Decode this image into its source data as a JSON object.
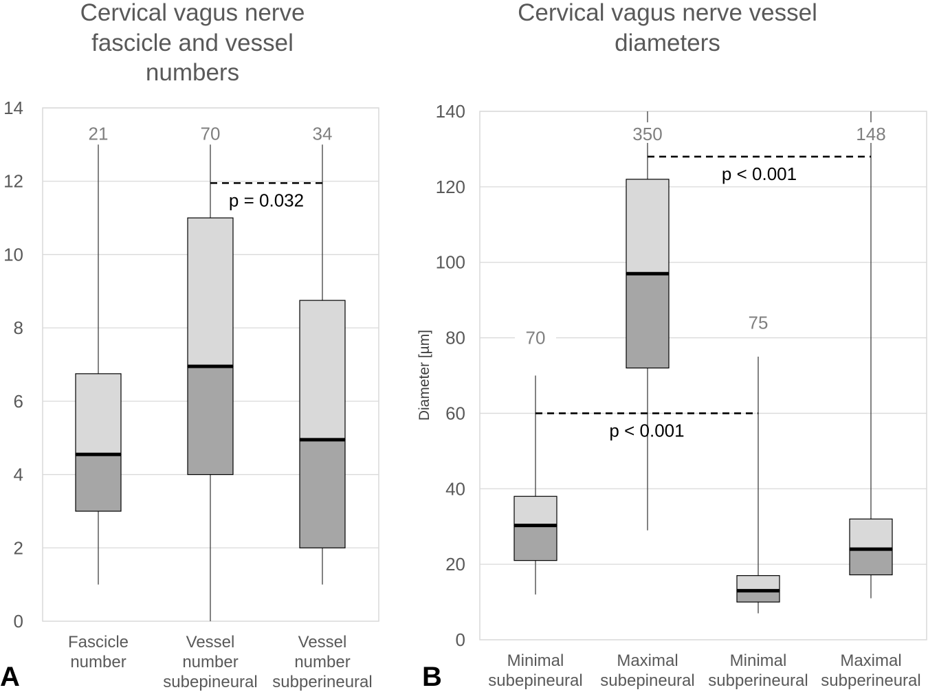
{
  "colors": {
    "upper_box": "#d9d9d9",
    "lower_box": "#a6a6a6",
    "median": "#000000",
    "gridline": "#d9d9d9",
    "title_text": "#595959",
    "count_text": "#7f7f7f",
    "axis_text": "#595959"
  },
  "panel_labels": [
    "A",
    "B"
  ],
  "chart_data": [
    {
      "type": "box",
      "title": "Cervical vagus nerve fascicle and vessel numbers",
      "title_lines": [
        "Cervical vagus nerve",
        "fascicle and vessel",
        "numbers"
      ],
      "xlabel": "",
      "ylabel": "",
      "ylim": [
        0,
        14
      ],
      "yticks": [
        "0",
        "2",
        "4",
        "6",
        "8",
        "10",
        "12",
        "14"
      ],
      "grid": true,
      "categories": [
        {
          "lines": [
            "Fascicle",
            "number"
          ],
          "min": 1,
          "q1": 3,
          "median": 4.55,
          "q3": 6.75,
          "max": 13,
          "count": "21"
        },
        {
          "lines": [
            "Vessel",
            "number",
            "subepineural"
          ],
          "min": 0,
          "q1": 4,
          "median": 6.95,
          "q3": 11,
          "max": 13,
          "count": "70"
        },
        {
          "lines": [
            "Vessel",
            "number",
            "subperineural"
          ],
          "min": 1,
          "q1": 2,
          "median": 4.95,
          "q3": 8.75,
          "max": 13,
          "count": "34"
        }
      ],
      "comparisons": [
        {
          "from": 1,
          "to": 2,
          "y": 11.95,
          "label": "p = 0.032"
        }
      ]
    },
    {
      "type": "box",
      "title": "Cervical vagus nerve vessel diameters",
      "title_lines": [
        "Cervical vagus nerve vessel",
        "diameters"
      ],
      "xlabel": "",
      "ylabel": "Diameter [µm]",
      "ylim": [
        0,
        140
      ],
      "yticks": [
        "0",
        "20",
        "40",
        "60",
        "80",
        "100",
        "120",
        "140"
      ],
      "grid": true,
      "categories": [
        {
          "lines": [
            "Minimal",
            "subepineural"
          ],
          "min": 12,
          "q1": 21,
          "median": 30.3,
          "q3": 38,
          "max": 70,
          "count": "70",
          "count_y": 80
        },
        {
          "lines": [
            "Maximal",
            "subepineural"
          ],
          "min": 29,
          "q1": 72,
          "median": 97,
          "q3": 122,
          "max": 140,
          "count": "350",
          "count_y": 134
        },
        {
          "lines": [
            "Minimal",
            "subperineural"
          ],
          "min": 7,
          "q1": 10,
          "median": 13,
          "q3": 17,
          "max": 75,
          "count": "75",
          "count_y": 84
        },
        {
          "lines": [
            "Maximal",
            "subperineural"
          ],
          "min": 11,
          "q1": 17.2,
          "median": 24,
          "q3": 32,
          "max": 140,
          "count": "148",
          "count_y": 134
        }
      ],
      "comparisons": [
        {
          "from": 1,
          "to": 3,
          "y": 128,
          "label": "p < 0.001"
        },
        {
          "from": 0,
          "to": 2,
          "y": 60,
          "label": "p < 0.001"
        }
      ]
    }
  ]
}
